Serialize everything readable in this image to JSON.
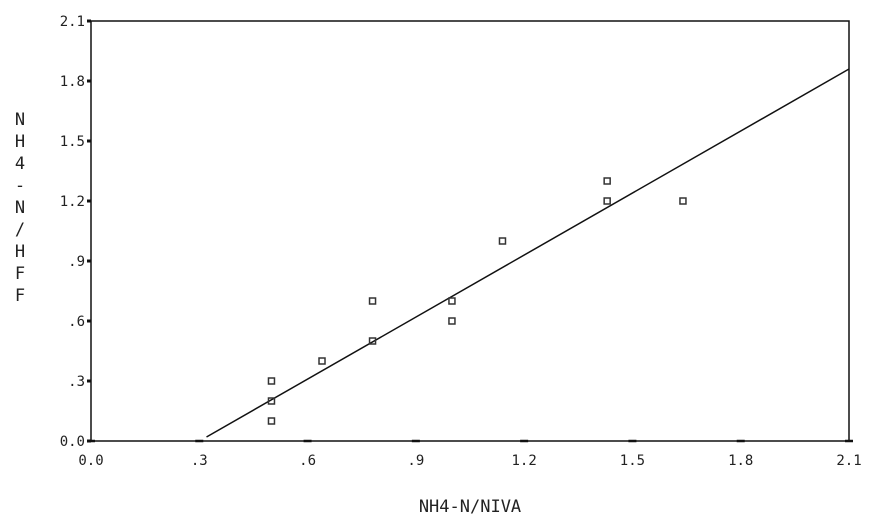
{
  "chart_data": {
    "type": "scatter",
    "title": "",
    "xlabel": "NH4-N/NIVA",
    "ylabel": "NH4-N/HFF",
    "xlim": [
      0.0,
      2.1
    ],
    "ylim": [
      0.0,
      2.1
    ],
    "x_ticks": [
      "0.0",
      ".3",
      ".6",
      ".9",
      "1.2",
      "1.5",
      "1.8",
      "2.1"
    ],
    "y_ticks": [
      "0.0",
      ".3",
      ".6",
      ".9",
      "1.2",
      "1.5",
      "1.8",
      "2.1"
    ],
    "grid": false,
    "points": [
      {
        "x": 0.5,
        "y": 0.3
      },
      {
        "x": 0.5,
        "y": 0.2
      },
      {
        "x": 0.5,
        "y": 0.1
      },
      {
        "x": 0.64,
        "y": 0.4
      },
      {
        "x": 0.78,
        "y": 0.7
      },
      {
        "x": 0.78,
        "y": 0.5
      },
      {
        "x": 1.0,
        "y": 0.7
      },
      {
        "x": 1.0,
        "y": 0.6
      },
      {
        "x": 1.14,
        "y": 1.0
      },
      {
        "x": 1.43,
        "y": 1.3
      },
      {
        "x": 1.43,
        "y": 1.2
      },
      {
        "x": 1.64,
        "y": 1.2
      }
    ],
    "fit_line": {
      "x": [
        0.32,
        2.1
      ],
      "y": [
        0.02,
        1.86
      ]
    },
    "colors": {
      "points": "#333333",
      "line": "#111111",
      "frame": "#111111"
    }
  }
}
